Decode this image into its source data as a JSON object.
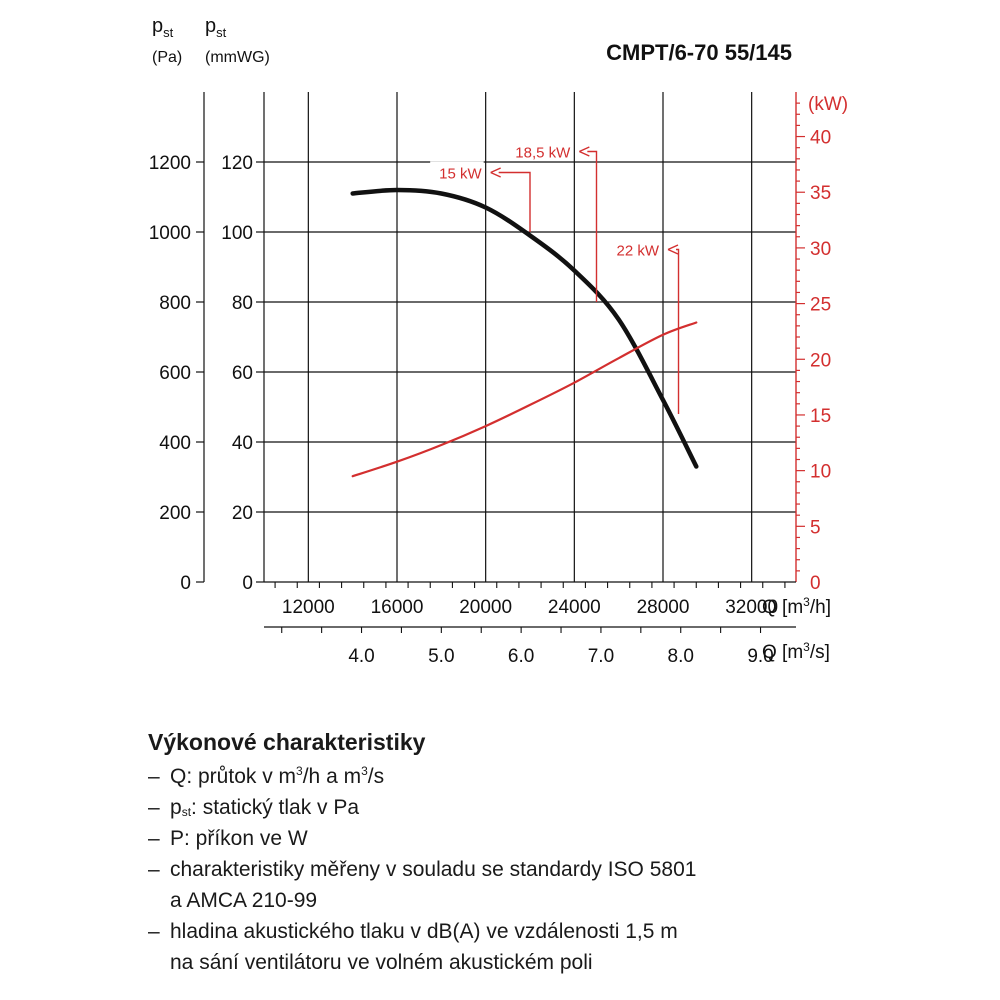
{
  "chart_data": {
    "type": "line",
    "title": "CMPT/6-70 55/145",
    "y_axes": {
      "pa": {
        "symbol": "p",
        "subscript": "st",
        "unit": "(Pa)",
        "range": [
          0,
          1400
        ],
        "ticks": [
          "0",
          "200",
          "400",
          "600",
          "800",
          "1000",
          "1200"
        ]
      },
      "mmwg": {
        "symbol": "p",
        "subscript": "st",
        "unit": "(mmWG)",
        "range": [
          0,
          140
        ],
        "ticks": [
          "0",
          "20",
          "40",
          "60",
          "80",
          "100",
          "120"
        ]
      },
      "kw": {
        "unit": "(kW)",
        "range": [
          0,
          44
        ],
        "ticks": [
          "0",
          "5",
          "10",
          "15",
          "20",
          "25",
          "30",
          "35",
          "40"
        ],
        "color": "#d32f2f"
      }
    },
    "x_axes": {
      "m3h": {
        "label_pre": "Q [m",
        "label_sup": "3",
        "label_post": "/h]",
        "range": [
          10000,
          34000
        ],
        "ticks": [
          "12000",
          "16000",
          "20000",
          "24000",
          "28000",
          "32000"
        ]
      },
      "m3s": {
        "label_pre": "Q [m",
        "label_sup": "3",
        "label_post": "/s]",
        "ticks": [
          "4.0",
          "5.0",
          "6.0",
          "7.0",
          "8.0",
          "9.0"
        ]
      }
    },
    "grid": true,
    "series": [
      {
        "axis": "mmwg",
        "color": "#111111",
        "x": [
          14000,
          16000,
          18000,
          20000,
          22000,
          24000,
          26000,
          28000,
          29500
        ],
        "y": [
          111,
          112,
          111,
          107,
          99,
          89,
          75,
          52,
          33
        ]
      },
      {
        "axis": "kw",
        "color": "#d32f2f",
        "x": [
          14000,
          16000,
          18000,
          20000,
          22000,
          24000,
          26000,
          28000,
          29500
        ],
        "y": [
          9.5,
          10.8,
          12.3,
          14.0,
          15.9,
          17.9,
          20.1,
          22.2,
          23.3
        ]
      }
    ],
    "annotations": [
      {
        "text": "15 kW",
        "x": 22000,
        "y": 100,
        "label_x": 20000,
        "label_y": 117
      },
      {
        "text": "18,5 kW",
        "x": 25000,
        "y": 80,
        "label_x": 24000,
        "label_y": 123
      },
      {
        "text": "22 kW",
        "x": 28700,
        "y": 48,
        "label_x": 28000,
        "label_y": 95
      }
    ]
  },
  "legend": {
    "title": "Výkonové charakteristiky",
    "item1_pre": "Q: průtok v m",
    "item1_sup1": "3",
    "item1_mid": "/h a m",
    "item1_sup2": "3",
    "item1_post": "/s",
    "item2_pre": "p",
    "item2_sub": "st",
    "item2_post": ": statický tlak v Pa",
    "item3": "P: příkon ve W",
    "item4_line1": "charakteristiky měřeny v souladu se standardy ISO 5801",
    "item4_line2": "a AMCA 210-99",
    "item5_line1": "hladina akustického tlaku v dB(A) ve vzdálenosti 1,5 m",
    "item5_line2": "na sání ventilátoru ve volném akustickém poli"
  }
}
